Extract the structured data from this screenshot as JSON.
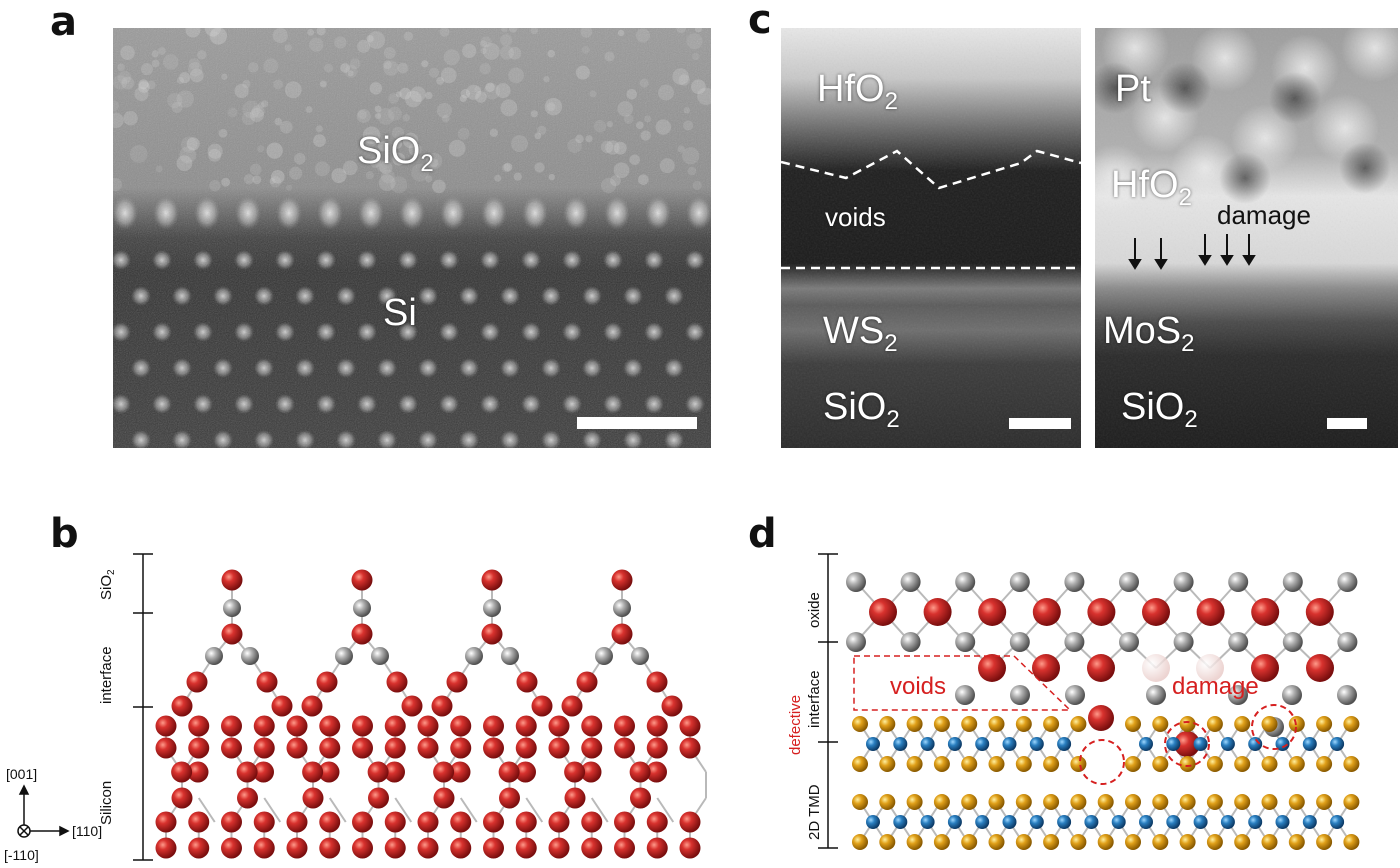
{
  "panels": {
    "a": {
      "letter": "a",
      "labels": {
        "top": "SiO",
        "top_sub": "2",
        "bottom": "Si"
      }
    },
    "b": {
      "letter": "b",
      "axis_labels": {
        "sio2": "SiO",
        "sio2_sub": "2",
        "interface": "interface",
        "silicon": "Silicon"
      },
      "directions": {
        "up": "[001]",
        "right": "[110]",
        "out": "[-110]"
      }
    },
    "c": {
      "letter": "c",
      "left": {
        "top": "HfO",
        "top_sub": "2",
        "middle": "voids",
        "ws2": "WS",
        "ws2_sub": "2",
        "sio2": "SiO",
        "sio2_sub": "2"
      },
      "right": {
        "pt": "Pt",
        "hfo2": "HfO",
        "hfo2_sub": "2",
        "damage": "damage",
        "mos2": "MoS",
        "mos2_sub": "2",
        "sio2": "SiO",
        "sio2_sub": "2"
      }
    },
    "d": {
      "letter": "d",
      "axis_labels": {
        "oxide": "oxide",
        "interface": "interface",
        "defective": "defective",
        "tmd": "2D TMD"
      },
      "callouts": {
        "voids": "voids",
        "damage": "damage"
      }
    }
  },
  "colors": {
    "oxygen_red": "#c0262a",
    "metal_gray": "#8a8a8a",
    "sulfur_gold": "#e0a019",
    "metal_blue": "#2a7fc0",
    "defect_red": "#d62020"
  }
}
